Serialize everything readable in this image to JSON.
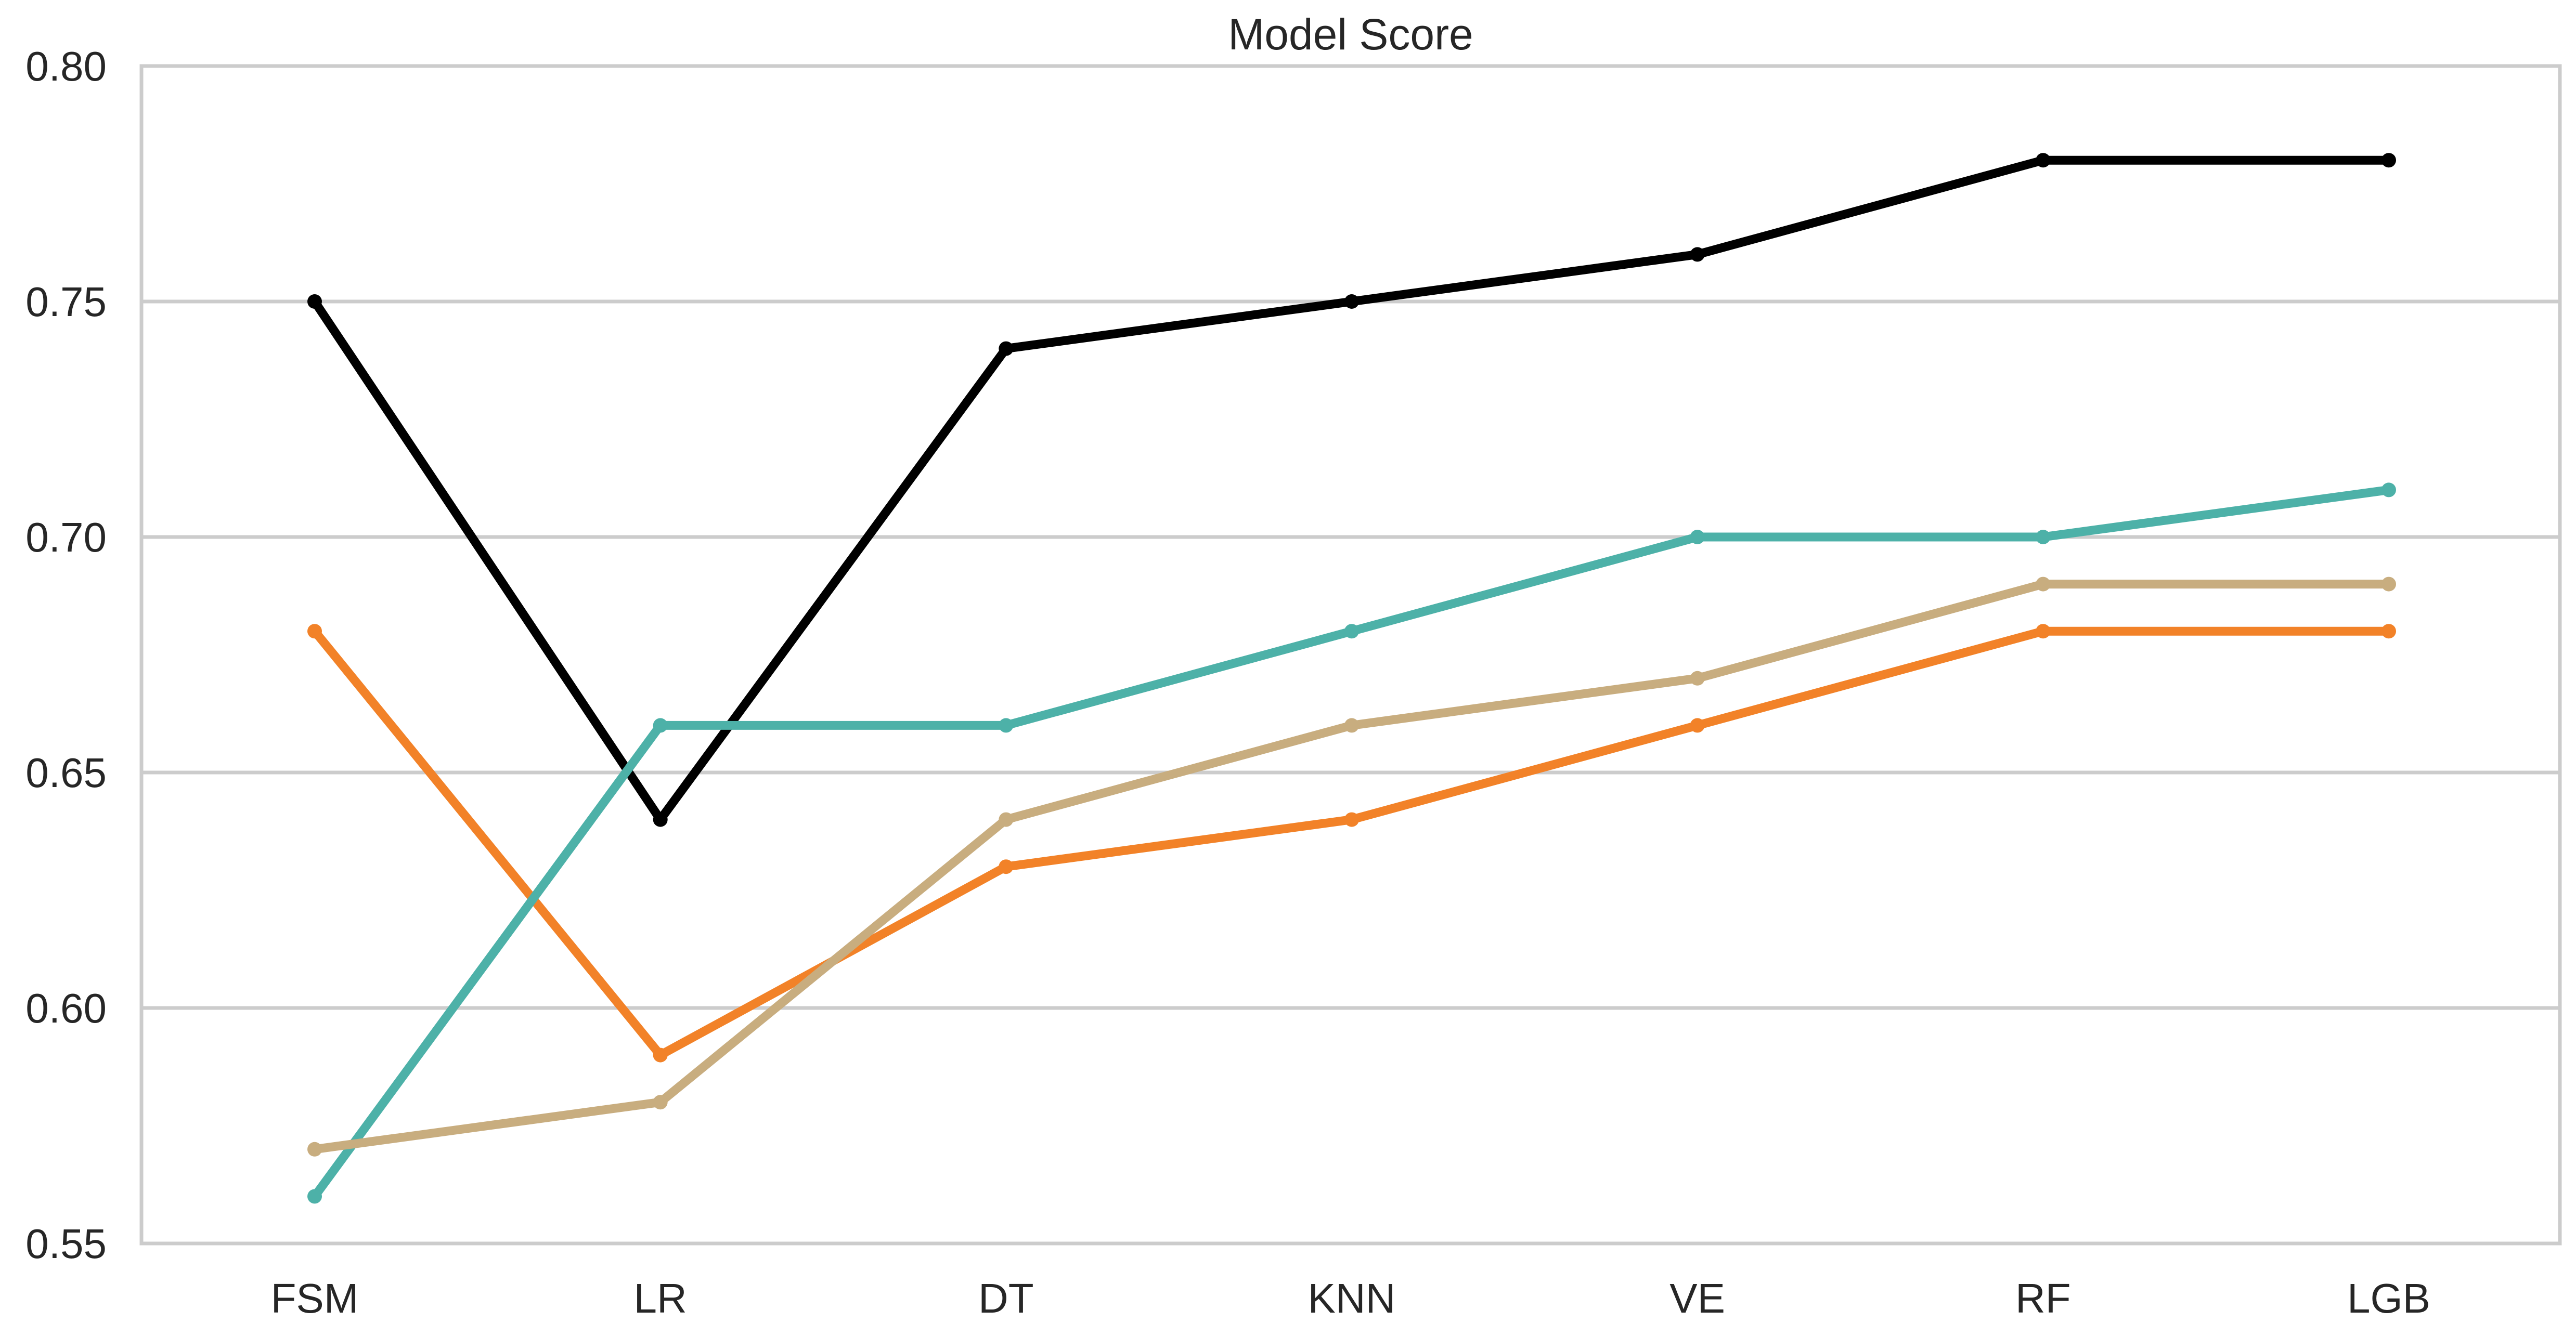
{
  "chart_data": {
    "type": "line",
    "title": "Model Score",
    "xlabel": "",
    "ylabel": "",
    "categories": [
      "FSM",
      "LR",
      "DT",
      "KNN",
      "VE",
      "RF",
      "LGB"
    ],
    "ylim": [
      0.55,
      0.8
    ],
    "yticks": [
      "0.55",
      "0.60",
      "0.65",
      "0.70",
      "0.75",
      "0.80"
    ],
    "grid": "horizontal",
    "legend": "none",
    "series": [
      {
        "color": "#000000",
        "values": [
          0.75,
          0.64,
          0.74,
          0.75,
          0.76,
          0.78,
          0.78
        ]
      },
      {
        "color": "#F28228",
        "values": [
          0.68,
          0.59,
          0.63,
          0.64,
          0.66,
          0.68,
          0.68
        ]
      },
      {
        "color": "#4DB1A8",
        "values": [
          0.56,
          0.66,
          0.66,
          0.68,
          0.7,
          0.7,
          0.71
        ]
      },
      {
        "color": "#C8AD7F",
        "values": [
          0.57,
          0.58,
          0.64,
          0.66,
          0.67,
          0.69,
          0.69
        ]
      }
    ]
  }
}
